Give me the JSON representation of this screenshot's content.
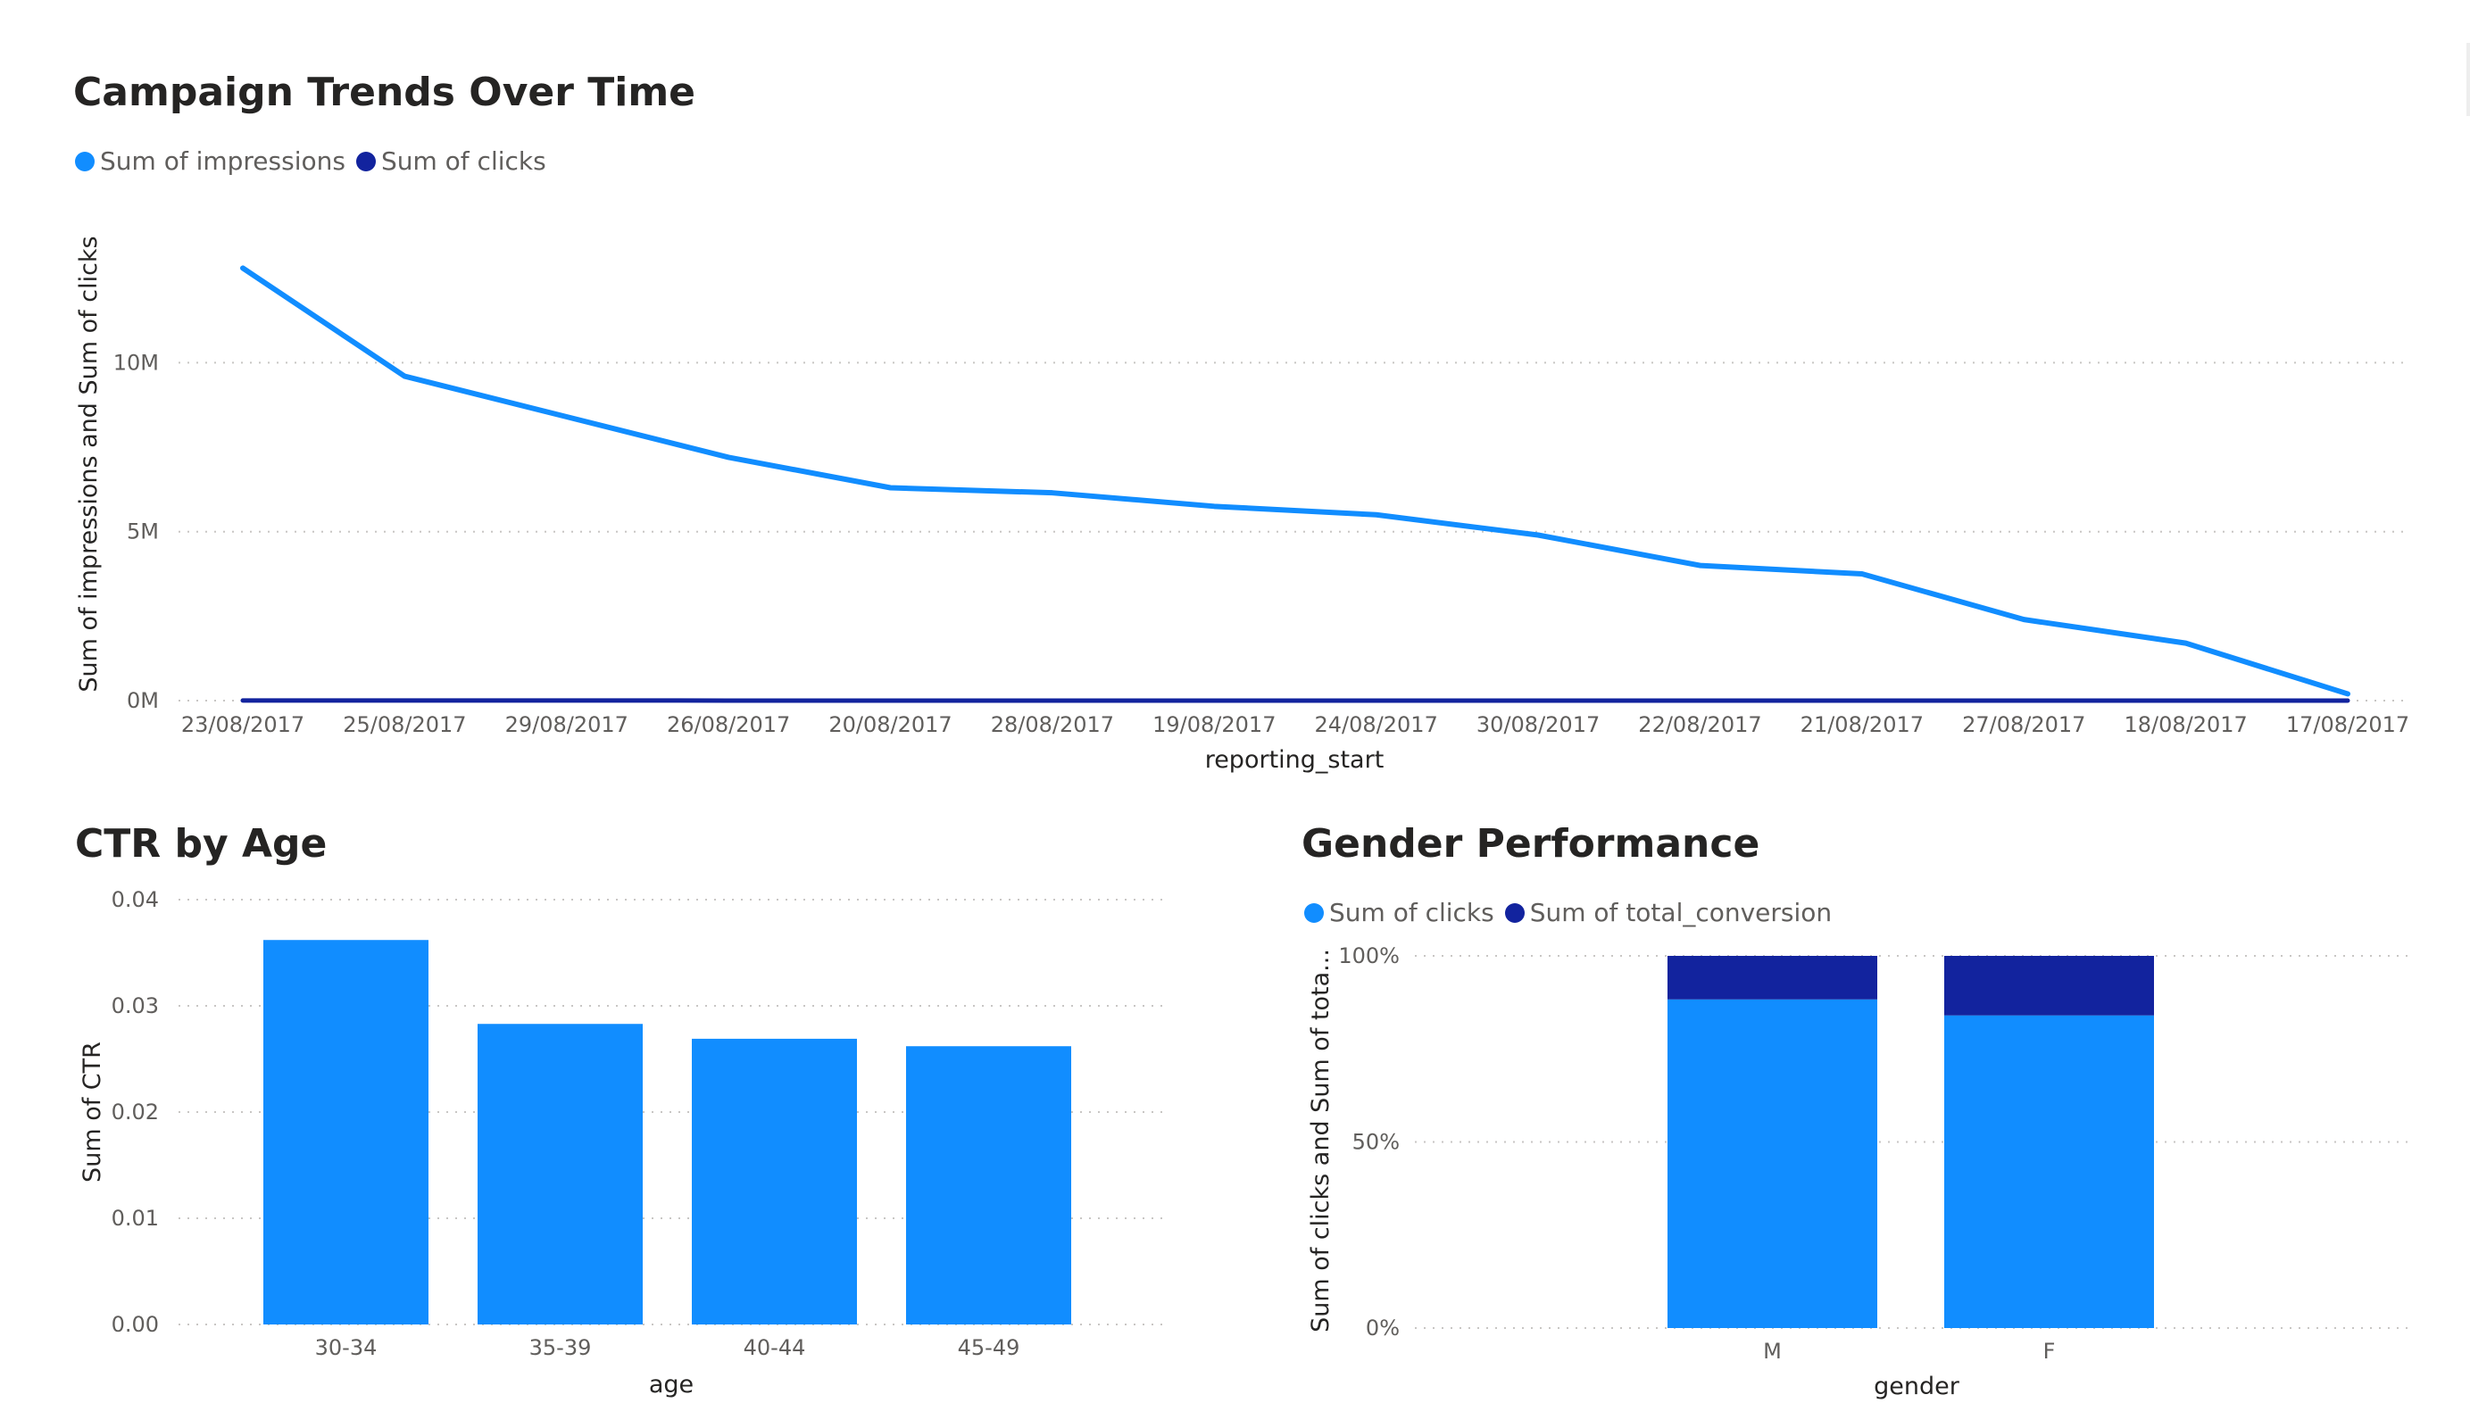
{
  "colors": {
    "impressions": "#118DFF",
    "clicks_dark": "#12239E",
    "clicks_bar": "#118DFF",
    "conversion": "#12239E",
    "grid": "#C8C6C4",
    "tick": "#605E5C"
  },
  "chart_data": [
    {
      "id": "trends",
      "type": "line",
      "title": "Campaign Trends Over Time",
      "xlabel": "reporting_start",
      "ylabel": "Sum of impressions and Sum of clicks",
      "categories": [
        "23/08/2017",
        "25/08/2017",
        "29/08/2017",
        "26/08/2017",
        "20/08/2017",
        "28/08/2017",
        "19/08/2017",
        "24/08/2017",
        "30/08/2017",
        "22/08/2017",
        "21/08/2017",
        "27/08/2017",
        "18/08/2017",
        "17/08/2017"
      ],
      "yticks": [
        0,
        5000000,
        10000000
      ],
      "ytick_labels": [
        "0M",
        "5M",
        "10M"
      ],
      "ylim": [
        0,
        14000000
      ],
      "legend_position": "top-left",
      "grid": true,
      "series": [
        {
          "name": "Sum of impressions",
          "color": "#118DFF",
          "values": [
            12800000,
            9600000,
            8400000,
            7200000,
            6300000,
            6150000,
            5750000,
            5500000,
            4900000,
            4000000,
            3750000,
            2400000,
            1700000,
            200000
          ]
        },
        {
          "name": "Sum of clicks",
          "color": "#12239E",
          "values": [
            2800,
            2000,
            1800,
            1600,
            1400,
            1400,
            1300,
            1200,
            1100,
            900,
            800,
            550,
            400,
            50
          ]
        }
      ]
    },
    {
      "id": "ctr",
      "type": "bar",
      "title": "CTR by Age",
      "xlabel": "age",
      "ylabel": "Sum of CTR",
      "categories": [
        "30-34",
        "35-39",
        "40-44",
        "45-49"
      ],
      "values": [
        0.0362,
        0.0283,
        0.0269,
        0.0262
      ],
      "yticks": [
        0,
        0.01,
        0.02,
        0.03,
        0.04
      ],
      "ytick_labels": [
        "0.00",
        "0.01",
        "0.02",
        "0.03",
        "0.04"
      ],
      "ylim": [
        0,
        0.04
      ],
      "color": "#118DFF",
      "grid": true
    },
    {
      "id": "gender",
      "type": "bar",
      "stacked": "percent",
      "title": "Gender Performance",
      "xlabel": "gender",
      "ylabel": "Sum of clicks and Sum of tota...",
      "categories": [
        "M",
        "F"
      ],
      "yticks": [
        0,
        50,
        100
      ],
      "ytick_labels": [
        "0%",
        "50%",
        "100%"
      ],
      "ylim": [
        0,
        100
      ],
      "legend_position": "top-left",
      "grid": true,
      "series": [
        {
          "name": "Sum of clicks",
          "color": "#118DFF",
          "values": [
            88.3,
            84.0
          ]
        },
        {
          "name": "Sum of total_conversion",
          "color": "#12239E",
          "values": [
            11.7,
            16.0
          ]
        }
      ]
    }
  ]
}
